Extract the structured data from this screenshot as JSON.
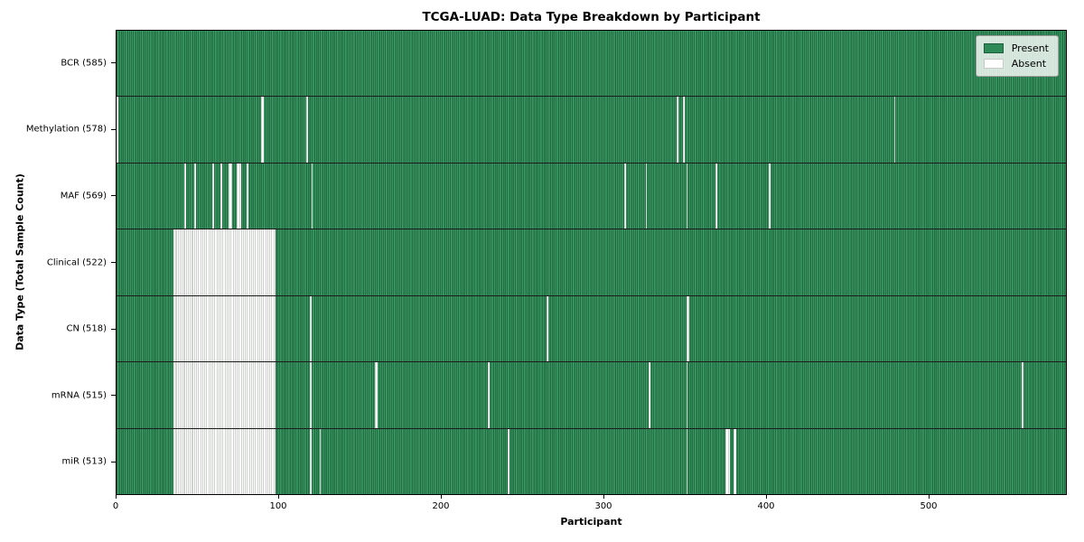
{
  "chart_data": {
    "type": "heatmap",
    "title": "TCGA-LUAD: Data Type Breakdown by Participant",
    "xlabel": "Participant",
    "ylabel": "Data Type (Total Sample Count)",
    "x_tick_values": [
      0,
      100,
      200,
      300,
      400,
      500
    ],
    "n_participants": 585,
    "xlim": [
      0,
      585
    ],
    "grid": false,
    "legend_position": "upper-right",
    "colors": {
      "present": "#2e8b57",
      "absent": "#ffffff"
    },
    "legend": [
      {
        "label": "Present",
        "color": "#2e8b57"
      },
      {
        "label": "Absent",
        "color": "#ffffff"
      }
    ],
    "rows": [
      {
        "label": "BCR (585)",
        "data_type": "BCR",
        "present_count": 585,
        "absent_count": 0,
        "absent_runs": []
      },
      {
        "label": "Methylation (578)",
        "data_type": "Methylation",
        "present_count": 578,
        "absent_count": 7,
        "absent_runs": [
          [
            0,
            1
          ],
          [
            89,
            2
          ],
          [
            117,
            1
          ],
          [
            345,
            1
          ],
          [
            349,
            1
          ],
          [
            479,
            1
          ]
        ]
      },
      {
        "label": "MAF (569)",
        "data_type": "MAF",
        "present_count": 569,
        "absent_count": 16,
        "absent_runs": [
          [
            42,
            1
          ],
          [
            48,
            1
          ],
          [
            59,
            1
          ],
          [
            64,
            1
          ],
          [
            69,
            2
          ],
          [
            74,
            3
          ],
          [
            80,
            1
          ],
          [
            120,
            1
          ],
          [
            313,
            1
          ],
          [
            326,
            1
          ],
          [
            351,
            1
          ],
          [
            369,
            1
          ],
          [
            402,
            1
          ]
        ]
      },
      {
        "label": "Clinical (522)",
        "data_type": "Clinical",
        "present_count": 522,
        "absent_count": 63,
        "absent_runs": [
          [
            35,
            63
          ]
        ]
      },
      {
        "label": "CN (518)",
        "data_type": "CN",
        "present_count": 518,
        "absent_count": 67,
        "absent_runs": [
          [
            35,
            63
          ],
          [
            119,
            1
          ],
          [
            265,
            1
          ],
          [
            351,
            2
          ]
        ]
      },
      {
        "label": "mRNA (515)",
        "data_type": "mRNA",
        "present_count": 515,
        "absent_count": 70,
        "absent_runs": [
          [
            35,
            63
          ],
          [
            119,
            1
          ],
          [
            159,
            2
          ],
          [
            229,
            1
          ],
          [
            328,
            1
          ],
          [
            351,
            1
          ],
          [
            558,
            1
          ]
        ]
      },
      {
        "label": "miR (513)",
        "data_type": "miR",
        "present_count": 513,
        "absent_count": 72,
        "absent_runs": [
          [
            35,
            63
          ],
          [
            119,
            1
          ],
          [
            125,
            1
          ],
          [
            241,
            1
          ],
          [
            351,
            1
          ],
          [
            375,
            3
          ],
          [
            380,
            2
          ]
        ]
      }
    ]
  }
}
